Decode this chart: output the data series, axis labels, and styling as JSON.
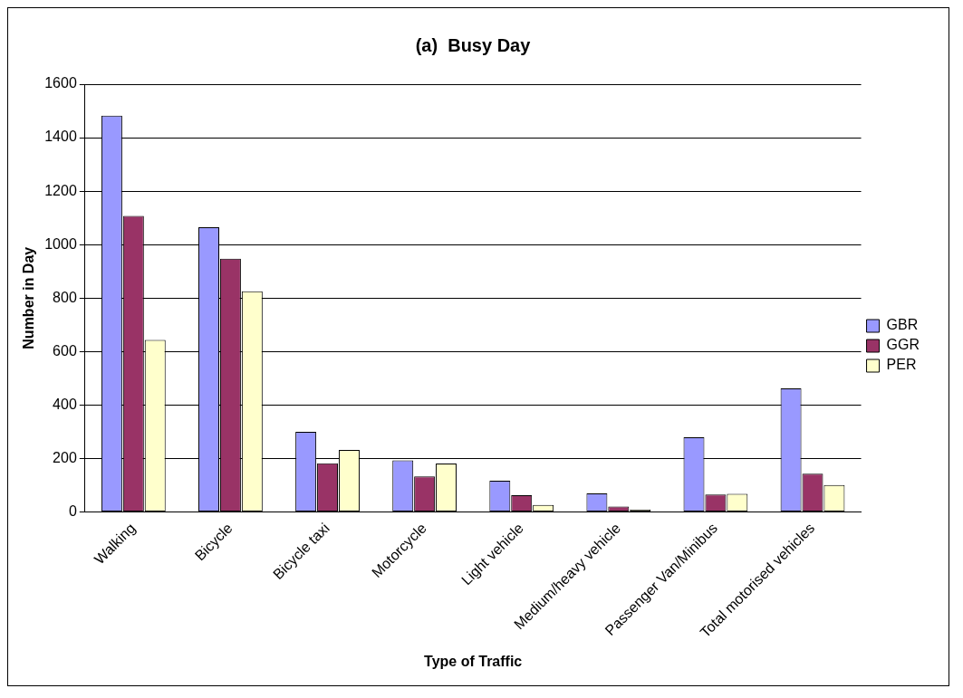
{
  "chart_data": {
    "type": "bar",
    "title": "(a)  Busy Day",
    "xlabel": "Type of Traffic",
    "ylabel": "Number in Day",
    "categories": [
      "Walking",
      "Bicycle",
      "Bicycle taxi",
      "Motorcycle",
      "Light vehicle",
      "Medium/heavy vehicle",
      "Passenger Van/Minibus",
      "Total motorised vehicles"
    ],
    "series": [
      {
        "name": "GBR",
        "color": "#9999ff",
        "values": [
          1482,
          1065,
          300,
          193,
          117,
          69,
          279,
          462
        ]
      },
      {
        "name": "GGR",
        "color": "#993366",
        "values": [
          1107,
          947,
          182,
          133,
          63,
          20,
          65,
          143
        ]
      },
      {
        "name": "PER",
        "color": "#ffffcc",
        "values": [
          643,
          825,
          232,
          181,
          26,
          9,
          68,
          101
        ]
      }
    ],
    "ylim": [
      0,
      1600
    ],
    "yticks": [
      0,
      200,
      400,
      600,
      800,
      1000,
      1200,
      1400,
      1600
    ],
    "grid": "y",
    "legend": "right"
  }
}
